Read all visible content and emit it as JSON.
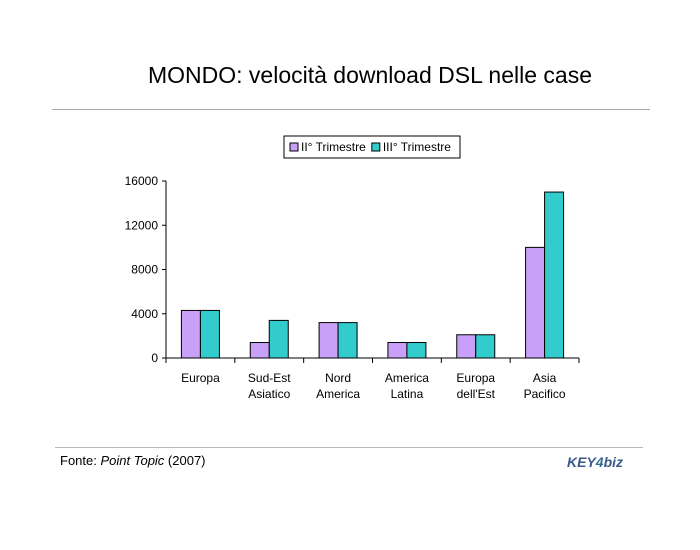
{
  "slide": {
    "title": "MONDO: velocità download DSL nelle case"
  },
  "source": {
    "prefix": "Fonte: ",
    "name": "Point Topic",
    "year": " (2007)"
  },
  "logo": {
    "part1": "KEY",
    "part2": "4",
    "part3": "biz",
    "color_main": "#3a5a8a",
    "color_accent": "#2f6f8f"
  },
  "chart_data": {
    "type": "bar",
    "categories": [
      [
        "Europa"
      ],
      [
        "Sud-Est",
        "Asiatico"
      ],
      [
        "Nord",
        "America"
      ],
      [
        "America",
        "Latina"
      ],
      [
        "Europa",
        "dell'Est"
      ],
      [
        "Asia",
        "Pacifico"
      ]
    ],
    "series": [
      {
        "name": "II° Trimestre",
        "color": "#c8a0f8",
        "values": [
          4300,
          1400,
          3200,
          1400,
          2100,
          10000
        ]
      },
      {
        "name": "III° Trimestre",
        "color": "#33cccc",
        "values": [
          4300,
          3400,
          3200,
          1400,
          2100,
          15000
        ]
      }
    ],
    "ylim": [
      0,
      16000
    ],
    "yticks": [
      0,
      4000,
      8000,
      12000,
      16000
    ],
    "legend": "top-center",
    "grid": false
  }
}
